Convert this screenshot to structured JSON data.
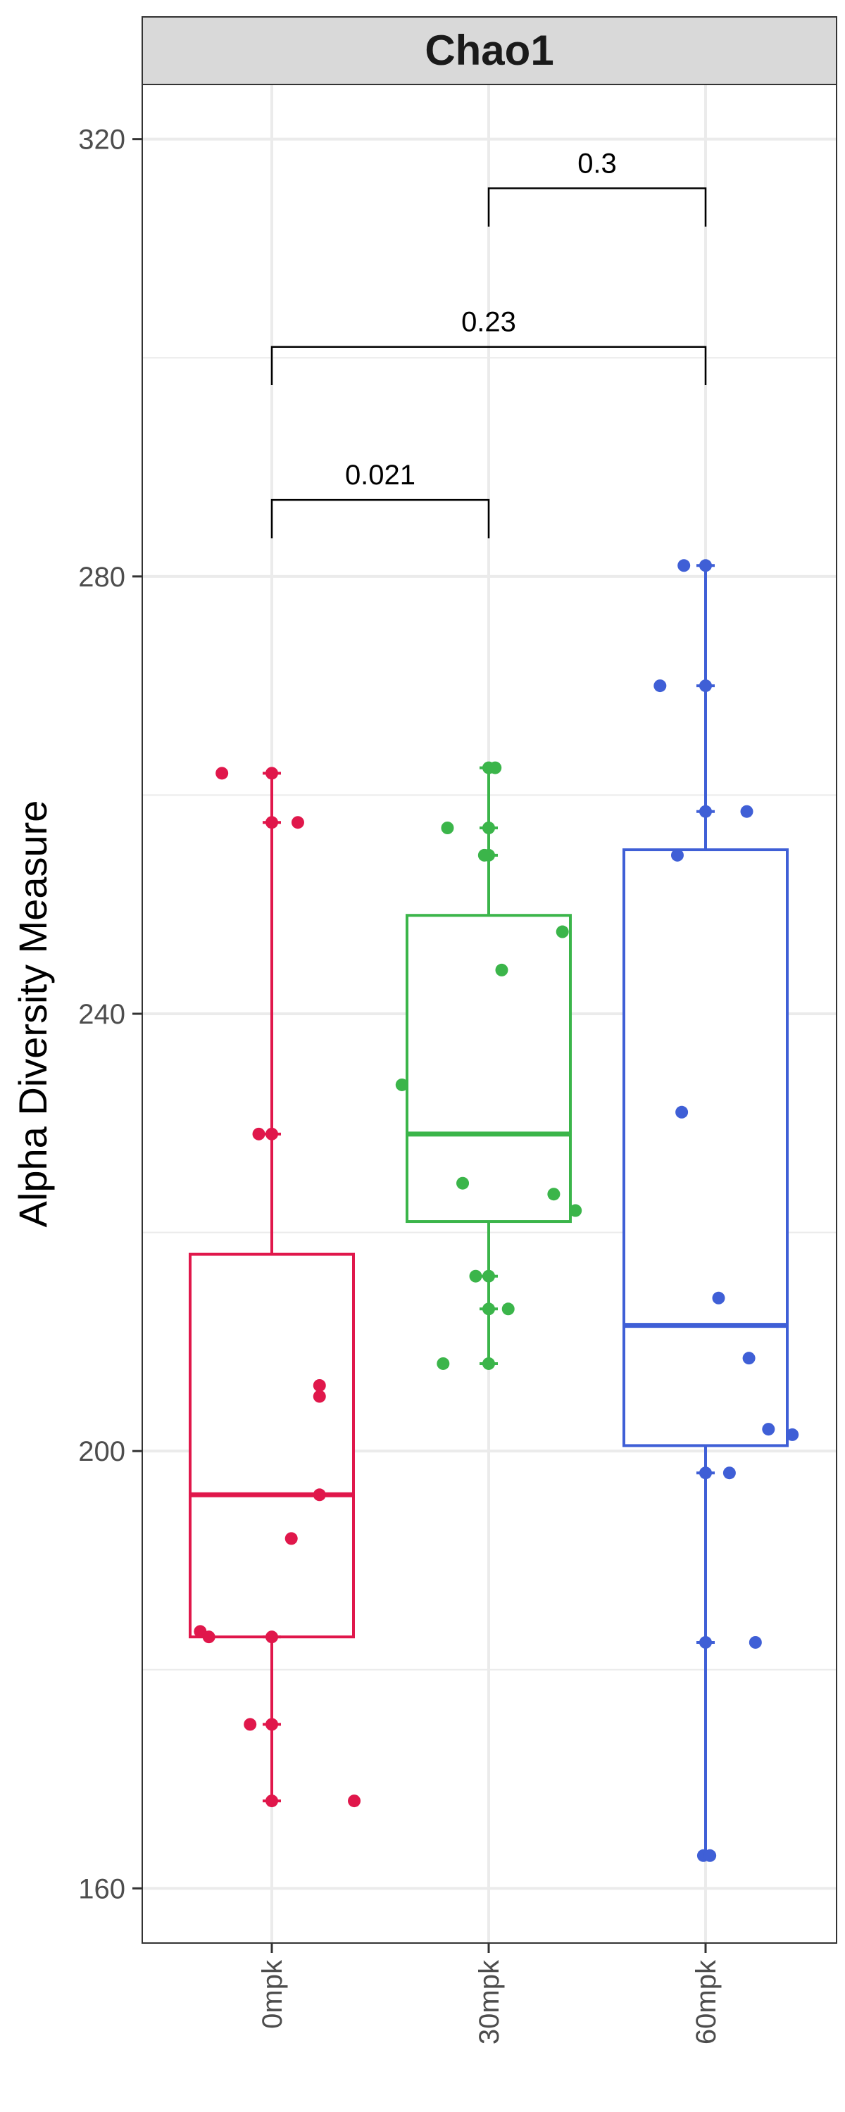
{
  "chart_data": {
    "type": "box",
    "facet_title": "Chao1",
    "xlabel": "",
    "ylabel": "Alpha Diversity Measure",
    "ylim": [
      155,
      325
    ],
    "yticks": [
      160,
      200,
      240,
      280
    ],
    "ytick_labels": [
      "160",
      "200",
      "240",
      "280"
    ],
    "top_tick": {
      "value": 320,
      "label": "320"
    },
    "grid": true,
    "categories": [
      "0mpk",
      "30mpk",
      "60mpk"
    ],
    "colors": [
      "#E0174B",
      "#3BB54A",
      "#3F5FD6"
    ],
    "series": [
      {
        "name": "0mpk",
        "box": {
          "q1": 183,
          "median": 196,
          "q3": 218,
          "lower_whisker": 168,
          "upper_whisker": 262
        },
        "points": [
          {
            "dx": -0.23,
            "y": 262
          },
          {
            "dx": 0,
            "y": 262
          },
          {
            "dx": 0,
            "y": 257.5
          },
          {
            "dx": 0.12,
            "y": 257.5
          },
          {
            "dx": -0.06,
            "y": 229
          },
          {
            "dx": 0,
            "y": 229
          },
          {
            "dx": 0.22,
            "y": 206
          },
          {
            "dx": 0.22,
            "y": 205
          },
          {
            "dx": 0.22,
            "y": 196
          },
          {
            "dx": 0.09,
            "y": 192
          },
          {
            "dx": -0.33,
            "y": 183.5
          },
          {
            "dx": -0.29,
            "y": 183
          },
          {
            "dx": 0,
            "y": 183
          },
          {
            "dx": -0.1,
            "y": 175
          },
          {
            "dx": 0,
            "y": 175
          },
          {
            "dx": 0,
            "y": 168
          },
          {
            "dx": 0.38,
            "y": 168
          }
        ]
      },
      {
        "name": "30mpk",
        "box": {
          "q1": 221,
          "median": 229,
          "q3": 249,
          "lower_whisker": 208,
          "upper_whisker": 262.5
        },
        "points": [
          {
            "dx": 0,
            "y": 262.5
          },
          {
            "dx": 0.03,
            "y": 262.5
          },
          {
            "dx": -0.19,
            "y": 257
          },
          {
            "dx": 0,
            "y": 257
          },
          {
            "dx": 0,
            "y": 254.5
          },
          {
            "dx": -0.02,
            "y": 254.5
          },
          {
            "dx": 0.34,
            "y": 247.5
          },
          {
            "dx": 0.06,
            "y": 244
          },
          {
            "dx": -0.4,
            "y": 233.5
          },
          {
            "dx": -0.12,
            "y": 224.5
          },
          {
            "dx": 0.3,
            "y": 223.5
          },
          {
            "dx": 0.4,
            "y": 222
          },
          {
            "dx": -0.06,
            "y": 216
          },
          {
            "dx": 0,
            "y": 216
          },
          {
            "dx": 0,
            "y": 213
          },
          {
            "dx": 0.09,
            "y": 213
          },
          {
            "dx": -0.21,
            "y": 208
          },
          {
            "dx": 0,
            "y": 208
          }
        ]
      },
      {
        "name": "60mpk",
        "box": {
          "q1": 200.5,
          "median": 211.5,
          "q3": 255,
          "lower_whisker": 163,
          "upper_whisker": 281
        },
        "points": [
          {
            "dx": -0.1,
            "y": 281
          },
          {
            "dx": 0,
            "y": 281
          },
          {
            "dx": -0.21,
            "y": 270
          },
          {
            "dx": 0,
            "y": 270
          },
          {
            "dx": 0,
            "y": 258.5
          },
          {
            "dx": 0.19,
            "y": 258.5
          },
          {
            "dx": -0.13,
            "y": 254.5
          },
          {
            "dx": -0.11,
            "y": 231
          },
          {
            "dx": 0.06,
            "y": 214
          },
          {
            "dx": 0.2,
            "y": 208.5
          },
          {
            "dx": 0.29,
            "y": 202
          },
          {
            "dx": 0.4,
            "y": 201.5
          },
          {
            "dx": 0,
            "y": 198
          },
          {
            "dx": 0.11,
            "y": 198
          },
          {
            "dx": 0,
            "y": 182.5
          },
          {
            "dx": 0.23,
            "y": 182.5
          },
          {
            "dx": -0.01,
            "y": 163
          },
          {
            "dx": 0.02,
            "y": 163
          }
        ]
      }
    ],
    "comparisons": [
      {
        "from": "0mpk",
        "to": "30mpk",
        "label": "0.021",
        "y": 287,
        "drop": 3.5
      },
      {
        "from": "0mpk",
        "to": "60mpk",
        "label": "0.23",
        "y": 301,
        "drop": 3.5
      },
      {
        "from": "30mpk",
        "to": "60mpk",
        "label": "0.3",
        "y": 315.5,
        "drop": 3.5
      }
    ]
  }
}
